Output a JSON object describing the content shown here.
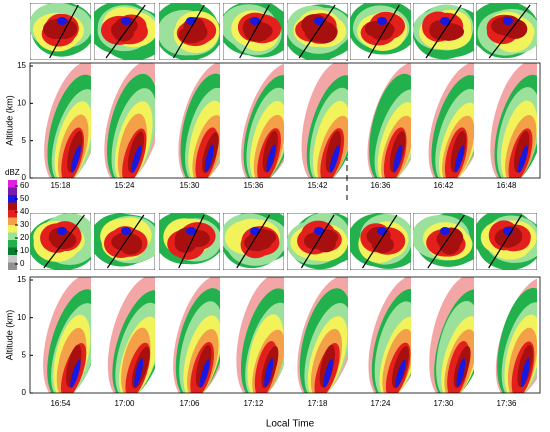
{
  "top_group": {
    "times": [
      "15:18",
      "15:24",
      "15:30",
      "15:36",
      "15:42",
      "16:36",
      "16:42",
      "16:48"
    ],
    "altitude_label": "Altitude (km)",
    "yticks": [
      0,
      5,
      10,
      15
    ]
  },
  "bottom_group": {
    "times": [
      "16:54",
      "17:00",
      "17:06",
      "17:12",
      "17:18",
      "17:24",
      "17:30",
      "17:36"
    ],
    "altitude_label": "Altitude (km)",
    "yticks": [
      0,
      5,
      10,
      15
    ]
  },
  "colorbar": {
    "unit": "dBZ",
    "ticks": [
      0,
      10,
      20,
      30,
      40,
      50,
      60
    ]
  },
  "x_axis_label": "Local Time"
}
